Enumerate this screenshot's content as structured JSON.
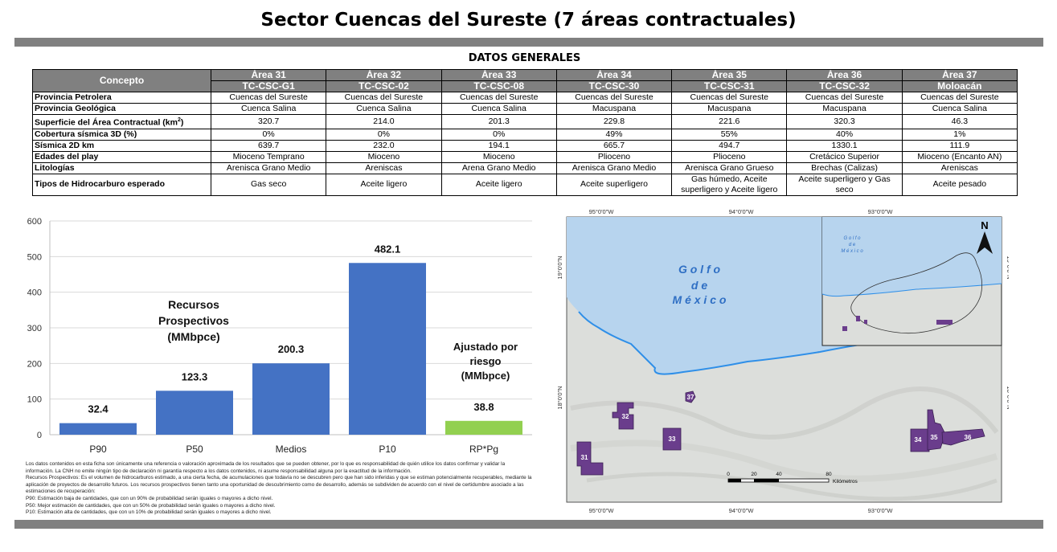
{
  "page": {
    "title": "Sector Cuencas del Sureste (7 áreas contractuales)",
    "section_title": "DATOS GENERALES"
  },
  "table": {
    "concept_header": "Concepto",
    "areas": [
      {
        "name": "Área 31",
        "code": "TC-CSC-G1"
      },
      {
        "name": "Área 32",
        "code": "TC-CSC-02"
      },
      {
        "name": "Área 33",
        "code": "TC-CSC-08"
      },
      {
        "name": "Área 34",
        "code": "TC-CSC-30"
      },
      {
        "name": "Área 35",
        "code": "TC-CSC-31"
      },
      {
        "name": "Área 36",
        "code": "TC-CSC-32"
      },
      {
        "name": "Área 37",
        "code": "Moloacán"
      }
    ],
    "rows": [
      {
        "label": "Provincia Petrolera",
        "values": [
          "Cuencas del Sureste",
          "Cuencas del Sureste",
          "Cuencas del Sureste",
          "Cuencas del Sureste",
          "Cuencas del Sureste",
          "Cuencas del Sureste",
          "Cuencas del Sureste"
        ]
      },
      {
        "label": "Provincia Geológica",
        "values": [
          "Cuenca Salina",
          "Cuenca Salina",
          "Cuenca Salina",
          "Macuspana",
          "Macuspana",
          "Macuspana",
          "Cuenca Salina"
        ]
      },
      {
        "label": "Superficie del Área Contractual (km",
        "sup": "2",
        "label_end": ")",
        "values": [
          "320.7",
          "214.0",
          "201.3",
          "229.8",
          "221.6",
          "320.3",
          "46.3"
        ]
      },
      {
        "label": "Cobertura sísmica 3D (%)",
        "values": [
          "0%",
          "0%",
          "0%",
          "49%",
          "55%",
          "40%",
          "1%"
        ]
      },
      {
        "label": "Sísmica 2D km",
        "values": [
          "639.7",
          "232.0",
          "194.1",
          "665.7",
          "494.7",
          "1330.1",
          "111.9"
        ]
      },
      {
        "label": "Edades del play",
        "values": [
          "Mioceno Temprano",
          "Mioceno",
          "Mioceno",
          "Plioceno",
          "Plioceno",
          "Cretácico Superior",
          "Mioceno (Encanto AN)"
        ]
      },
      {
        "label": "Litologías",
        "values": [
          "Arenisca Grano Medio",
          "Areniscas",
          "Arena Grano Medio",
          "Arenisca Grano Medio",
          "Arenisca Grano Grueso",
          "Brechas (Calizas)",
          "Areniscas"
        ]
      },
      {
        "label": "Tipos de Hidrocarburo esperado",
        "values": [
          "Gas seco",
          "Aceite ligero",
          "Aceite ligero",
          "Aceite superligero",
          "Gas húmedo, Aceite superligero y Aceite ligero",
          "Aceite superligero y Gas seco",
          "Aceite pesado"
        ]
      }
    ]
  },
  "chart_data": {
    "type": "bar",
    "categories": [
      "P90",
      "P50",
      "Medios",
      "P10",
      "RP*Pg"
    ],
    "values": [
      32.4,
      123.3,
      200.3,
      482.1,
      38.8
    ],
    "value_labels": [
      "32.4",
      "123.3",
      "200.3",
      "482.1",
      "38.8"
    ],
    "colors": [
      "#4472c4",
      "#4472c4",
      "#4472c4",
      "#4472c4",
      "#92d050"
    ],
    "ylim": [
      0,
      600
    ],
    "yticks": [
      "0",
      "100",
      "200",
      "300",
      "400",
      "500",
      "600"
    ],
    "grid": true,
    "annotation_left": [
      "Recursos",
      "Prospectivos",
      "(MMbpce)"
    ],
    "annotation_right": [
      "Ajustado por",
      "riesgo",
      "(MMbpce)"
    ]
  },
  "notes": [
    "Los datos contenidos en esta ficha son únicamente una referencia o valoración aproximada de los resultados que se pueden obtener, por lo que es responsabilidad de quién utilice los datos confirmar y validar la información. La CNH no emite ningún tipo de declaración ni garantía respecto a los datos contenidos, ni asume responsabilidad alguna por la exactitud de la información.",
    "Recursos Prospectivos: Es el volumen de hidrocarburos estimado, a una cierta fecha, de acumulaciones que todavía no se descubren pero que han sido inferidas y que se estiman potencialmente recuperables, mediante la aplicación de proyectos de desarrollo futuros. Los recursos prospectivos tienen tanto una oportunidad de descubrimiento como de desarrollo, además se subdividen de acuerdo con el nivel de certidumbre asociado a las estimaciones de recuperación:",
    "P90: Estimación baja de cantidades, que con un 90% de probabilidad serán iguales o mayores a dicho nivel.",
    "P50: Mejor estimación de cantidades, que con un 50% de probabilidad serán iguales o mayores a dicho nivel.",
    "P10: Estimación alta de cantidades, que con un 10% de probabilidad serán iguales o mayores a dicho nivel."
  ],
  "map": {
    "lon_labels": [
      "95°0'0\"W",
      "94°0'0\"W",
      "93°0'0\"W"
    ],
    "lat_labels": [
      "19°0'0\"N",
      "18°0'0\"N"
    ],
    "sea_label": [
      "G o l f o",
      "d e",
      "M é x i c o"
    ],
    "inset_sea_label": [
      "G o l f o",
      "d e",
      "M é x i c o"
    ],
    "north_label": "N",
    "scale_ticks": [
      "0",
      "20",
      "40",
      "80"
    ],
    "scale_unit": "Kilómetros",
    "areas": [
      "31",
      "32",
      "33",
      "34",
      "35",
      "36",
      "37"
    ],
    "colors": {
      "sea": "#b7d4ee",
      "land": "#dcdedb",
      "area": "#6a3d8c",
      "coast": "#2f8fe8"
    }
  }
}
